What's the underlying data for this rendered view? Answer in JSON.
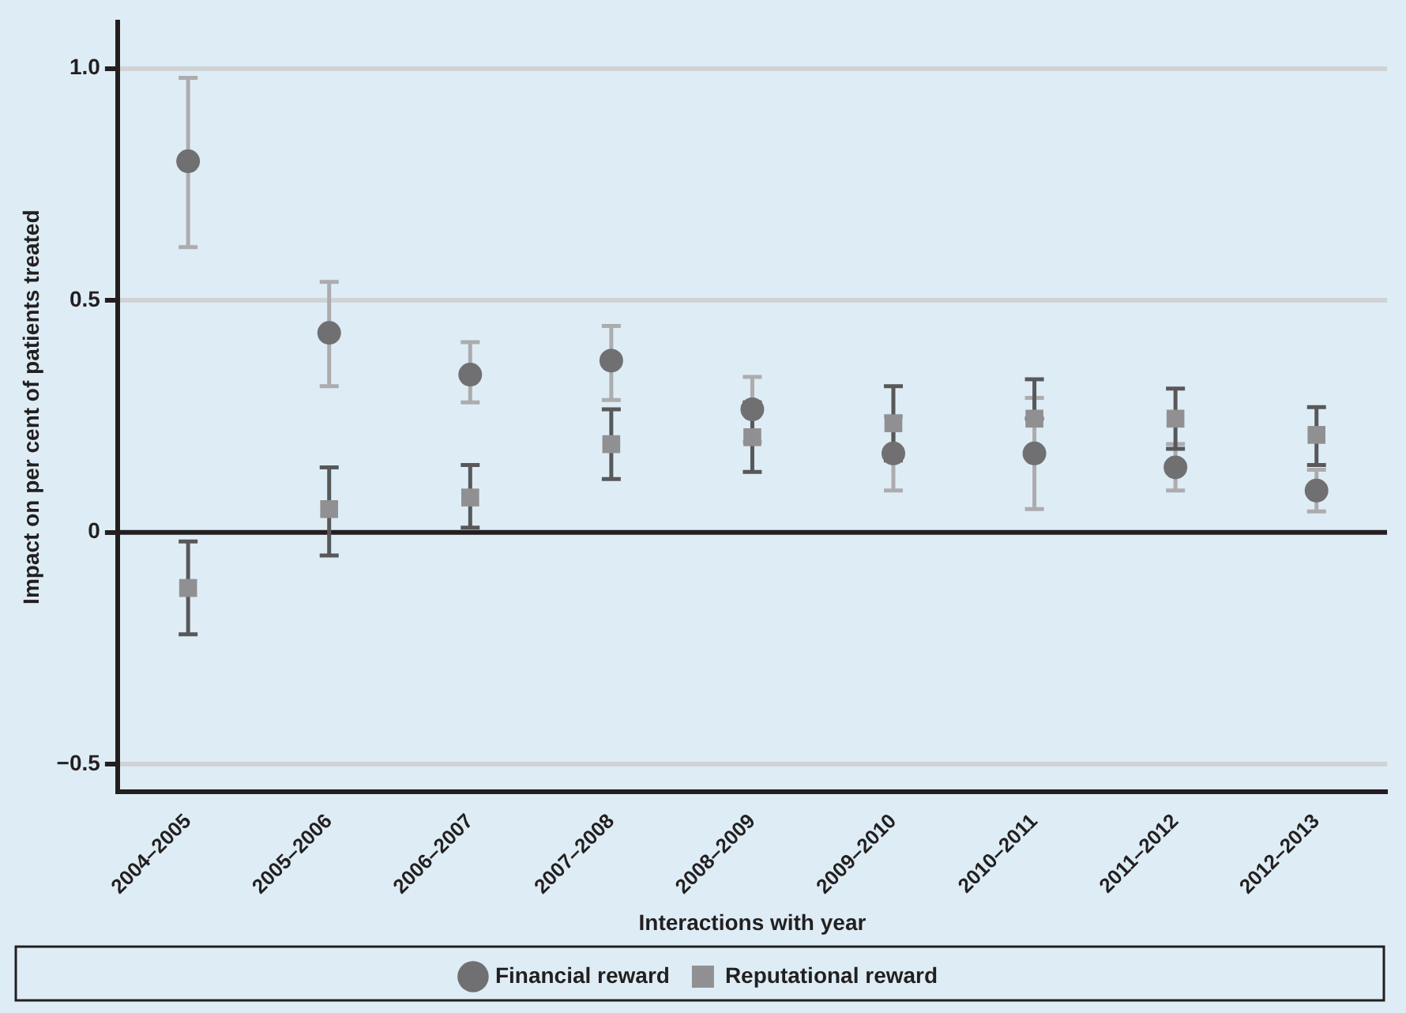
{
  "chart_data": {
    "type": "scatter",
    "xlabel": "Interactions with year",
    "ylabel": "Impact on per cent of patients treated",
    "categories": [
      "2004–2005",
      "2005–2006",
      "2006–2007",
      "2007–2008",
      "2008–2009",
      "2009–2010",
      "2010–2011",
      "2011–2012",
      "2012–2013"
    ],
    "series": [
      {
        "name": "Financial reward",
        "color": "#707073",
        "marker": "circle",
        "values": [
          0.8,
          0.43,
          0.34,
          0.37,
          0.265,
          0.17,
          0.17,
          0.14,
          0.09
        ],
        "errors": [
          [
            0.615,
            0.98
          ],
          [
            0.315,
            0.54
          ],
          [
            0.28,
            0.41
          ],
          [
            0.285,
            0.445
          ],
          [
            0.195,
            0.335
          ],
          [
            0.09,
            0.25
          ],
          [
            0.05,
            0.29
          ],
          [
            0.09,
            0.19
          ],
          [
            0.045,
            0.135
          ]
        ]
      },
      {
        "name": "Reputational reward",
        "color": "#909092",
        "marker": "square",
        "values": [
          -0.12,
          0.05,
          0.075,
          0.19,
          0.205,
          0.235,
          0.245,
          0.245,
          0.21
        ],
        "errors": [
          [
            -0.22,
            -0.02
          ],
          [
            -0.05,
            0.14
          ],
          [
            0.01,
            0.145
          ],
          [
            0.115,
            0.265
          ],
          [
            0.13,
            0.28
          ],
          [
            0.155,
            0.315
          ],
          [
            0.245,
            0.33
          ],
          [
            0.18,
            0.31
          ],
          [
            0.145,
            0.27
          ]
        ]
      }
    ],
    "ylim": [
      -0.56,
      1.1
    ],
    "yticks": [
      {
        "value": -0.5,
        "label": "−0.5"
      },
      0,
      0.5,
      {
        "value": 1,
        "label": "1.0"
      }
    ],
    "ref_lines": [
      {
        "axis": "y",
        "value": 0,
        "color": "#231f20"
      }
    ],
    "grid": "y",
    "legend": "bottom"
  }
}
